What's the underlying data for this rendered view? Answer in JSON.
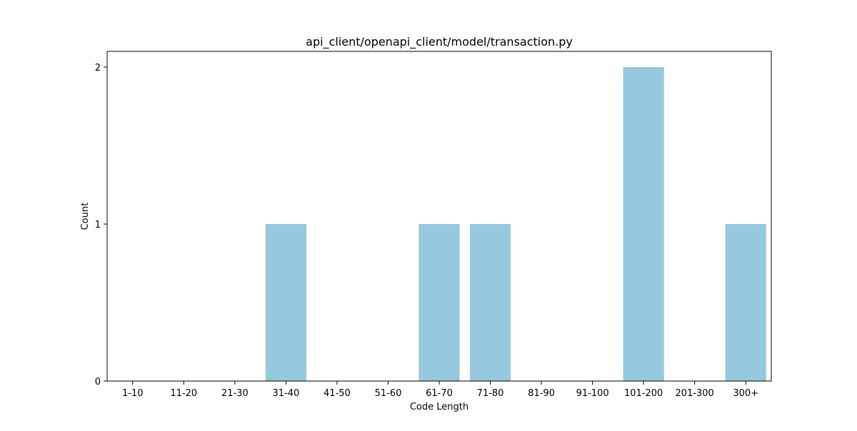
{
  "chart_data": {
    "type": "bar",
    "title": "api_client/openapi_client/model/transaction.py",
    "xlabel": "Code Length",
    "ylabel": "Count",
    "categories": [
      "1-10",
      "11-20",
      "21-30",
      "31-40",
      "41-50",
      "51-60",
      "61-70",
      "71-80",
      "81-90",
      "91-100",
      "101-200",
      "201-300",
      "300+"
    ],
    "values": [
      0,
      0,
      0,
      1,
      0,
      0,
      1,
      1,
      0,
      0,
      2,
      0,
      1
    ],
    "ylim": [
      0,
      2.1
    ],
    "yticks": [
      0,
      1,
      2
    ],
    "bar_color": "#96c9de",
    "grid": false,
    "legend": "none"
  }
}
